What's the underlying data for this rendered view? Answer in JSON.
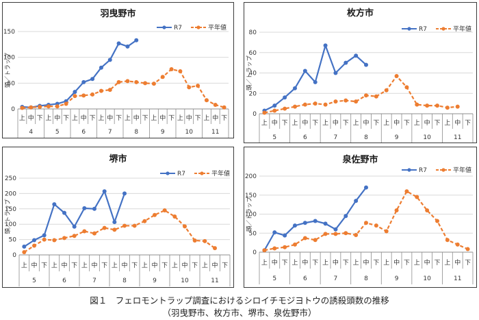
{
  "caption": {
    "line1": "図１　フェロモントラップ調査におけるシロイチモジヨトウの誘殺頭数の推移",
    "line2": "（羽曳野市、枚方市、堺市、泉佐野市）"
  },
  "colors": {
    "r7": "#4472C4",
    "avg": "#ED7D31",
    "grid": "#d9d9d9",
    "axis": "#8c8c8c"
  },
  "chart_data": [
    {
      "id": "habikino",
      "type": "line",
      "title": "羽曳野市",
      "ylabel": "頭／トラップ",
      "ylim": [
        0,
        150
      ],
      "yticks": [
        0,
        50,
        100,
        150
      ],
      "sub_labels": [
        "上",
        "中",
        "下",
        "上",
        "中",
        "下",
        "上",
        "中",
        "下",
        "上",
        "中",
        "下",
        "上",
        "中",
        "下",
        "上",
        "中",
        "下",
        "上",
        "中",
        "下",
        "上",
        "中",
        "下"
      ],
      "months": [
        "4",
        "5",
        "6",
        "7",
        "8",
        "9",
        "10",
        "11"
      ],
      "series": [
        {
          "name": "R7",
          "style": "solid",
          "values": [
            4,
            3,
            6,
            8,
            10,
            15,
            33,
            52,
            58,
            80,
            95,
            127,
            121,
            133,
            null,
            null,
            null,
            null,
            null,
            null,
            null,
            null,
            null,
            null
          ]
        },
        {
          "name": "平年値",
          "style": "dashed",
          "values": [
            2,
            3,
            4,
            5,
            5,
            10,
            25,
            26,
            28,
            35,
            37,
            52,
            54,
            52,
            50,
            49,
            62,
            77,
            73,
            42,
            45,
            17,
            8,
            3
          ]
        }
      ]
    },
    {
      "id": "hirakata",
      "type": "line",
      "title": "枚方市",
      "ylabel": "頭／トラップ",
      "ylim": [
        0,
        80
      ],
      "yticks": [
        0,
        20,
        40,
        60,
        80
      ],
      "sub_labels": [
        "上",
        "中",
        "下",
        "上",
        "中",
        "下",
        "上",
        "中",
        "下",
        "上",
        "中",
        "下",
        "上",
        "中",
        "下",
        "上",
        "中",
        "下",
        "上",
        "中",
        "下"
      ],
      "months": [
        "5",
        "6",
        "7",
        "8",
        "9",
        "10",
        "11"
      ],
      "series": [
        {
          "name": "R7",
          "style": "solid",
          "values": [
            3,
            8,
            16,
            25,
            42,
            31,
            67,
            40,
            50,
            57,
            48,
            null,
            null,
            null,
            null,
            null,
            null,
            null,
            null,
            null,
            null
          ]
        },
        {
          "name": "平年値",
          "style": "dashed",
          "values": [
            1,
            3,
            5,
            7,
            9,
            10,
            9,
            12,
            13,
            12,
            18,
            17,
            23,
            37,
            26,
            9,
            8,
            8,
            6,
            7,
            null
          ]
        }
      ]
    },
    {
      "id": "sakai",
      "type": "line",
      "title": "堺市",
      "ylabel": "頭／トラップ",
      "ylim": [
        0,
        250
      ],
      "yticks": [
        0,
        50,
        100,
        150,
        200,
        250
      ],
      "sub_labels": [
        "上",
        "中",
        "下",
        "上",
        "中",
        "下",
        "上",
        "中",
        "下",
        "上",
        "中",
        "下",
        "上",
        "中",
        "下",
        "上",
        "中",
        "下",
        "上",
        "中",
        "下"
      ],
      "months": [
        "5",
        "6",
        "7",
        "8",
        "9",
        "10",
        "11"
      ],
      "series": [
        {
          "name": "R7",
          "style": "solid",
          "values": [
            27,
            48,
            64,
            165,
            137,
            92,
            152,
            150,
            207,
            107,
            200,
            null,
            null,
            null,
            null,
            null,
            null,
            null,
            null,
            null,
            null
          ]
        },
        {
          "name": "平年値",
          "style": "dashed",
          "values": [
            9,
            30,
            50,
            48,
            55,
            62,
            77,
            70,
            88,
            82,
            95,
            95,
            110,
            130,
            145,
            125,
            93,
            47,
            45,
            22,
            null
          ]
        }
      ]
    },
    {
      "id": "izumisano",
      "type": "line",
      "title": "泉佐野市",
      "ylabel": "頭／トラップ",
      "ylim": [
        0,
        200
      ],
      "yticks": [
        0,
        50,
        100,
        150,
        200
      ],
      "sub_labels": [
        "上",
        "中",
        "下",
        "上",
        "中",
        "下",
        "上",
        "中",
        "下",
        "上",
        "中",
        "下",
        "上",
        "中",
        "下",
        "上",
        "中",
        "下",
        "上",
        "中",
        "下"
      ],
      "months": [
        "5",
        "6",
        "7",
        "8",
        "9",
        "10",
        "11"
      ],
      "series": [
        {
          "name": "R7",
          "style": "solid",
          "values": [
            5,
            52,
            44,
            70,
            77,
            82,
            75,
            60,
            95,
            135,
            170,
            null,
            null,
            null,
            null,
            null,
            null,
            null,
            null,
            null,
            null
          ]
        },
        {
          "name": "平年値",
          "style": "dashed",
          "values": [
            5,
            10,
            13,
            20,
            37,
            32,
            48,
            48,
            50,
            45,
            77,
            70,
            55,
            110,
            160,
            145,
            110,
            82,
            32,
            20,
            8
          ]
        }
      ]
    }
  ]
}
